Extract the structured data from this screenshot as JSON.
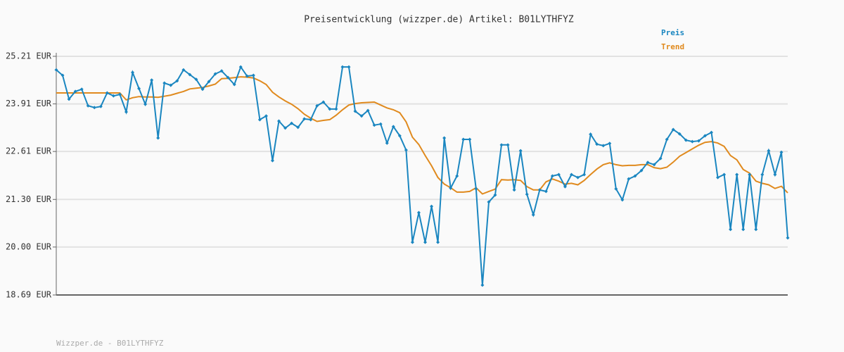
{
  "chart_data": {
    "type": "line",
    "title": "Preisentwicklung (wizzper.de) Artikel: B01LYTHFYZ",
    "footer": "Wizzper.de - B01LYTHFYZ",
    "ylim": [
      18.69,
      25.21
    ],
    "yticks": [
      {
        "value": 18.69,
        "label": "18.69 EUR"
      },
      {
        "value": 20.0,
        "label": "20.00 EUR"
      },
      {
        "value": 21.3,
        "label": "21.30 EUR"
      },
      {
        "value": 22.61,
        "label": "22.61 EUR"
      },
      {
        "value": 23.91,
        "label": "23.91 EUR"
      },
      {
        "value": 25.21,
        "label": "25.21 EUR"
      }
    ],
    "grid": true,
    "legend": "top-right",
    "series": [
      {
        "name": "Preis",
        "color": "#1a86c0",
        "markers": true,
        "values": [
          24.84,
          24.69,
          24.04,
          24.25,
          24.31,
          23.86,
          23.81,
          23.84,
          24.21,
          24.13,
          24.17,
          23.69,
          24.77,
          24.33,
          23.9,
          24.56,
          22.98,
          24.48,
          24.42,
          24.54,
          24.84,
          24.71,
          24.58,
          24.31,
          24.52,
          24.73,
          24.81,
          24.63,
          24.44,
          24.92,
          24.67,
          24.69,
          23.48,
          23.58,
          22.36,
          23.44,
          23.25,
          23.38,
          23.27,
          23.5,
          23.48,
          23.86,
          23.96,
          23.77,
          23.77,
          24.92,
          24.92,
          23.71,
          23.58,
          23.73,
          23.33,
          23.36,
          22.84,
          23.29,
          23.04,
          22.65,
          20.13,
          20.94,
          20.13,
          21.11,
          20.13,
          22.98,
          21.61,
          21.94,
          22.94,
          22.94,
          21.59,
          18.96,
          21.23,
          21.42,
          22.79,
          22.79,
          21.56,
          22.63,
          21.44,
          20.88,
          21.56,
          21.52,
          21.94,
          21.98,
          21.65,
          21.98,
          21.9,
          21.98,
          23.08,
          22.81,
          22.77,
          22.83,
          21.59,
          21.29,
          21.86,
          21.94,
          22.09,
          22.31,
          22.25,
          22.42,
          22.94,
          23.21,
          23.09,
          22.92,
          22.88,
          22.9,
          23.04,
          23.13,
          21.9,
          21.98,
          20.48,
          21.98,
          20.48,
          21.98,
          20.48,
          21.98,
          22.63,
          21.98,
          22.59,
          20.25
        ]
      },
      {
        "name": "Trend",
        "color": "#e08a1e",
        "markers": false,
        "values": [
          24.21,
          24.21,
          24.21,
          24.21,
          24.21,
          24.21,
          24.21,
          24.21,
          24.21,
          24.21,
          24.21,
          24.02,
          24.08,
          24.11,
          24.1,
          24.1,
          24.09,
          24.12,
          24.15,
          24.2,
          24.25,
          24.32,
          24.34,
          24.36,
          24.4,
          24.45,
          24.6,
          24.61,
          24.63,
          24.65,
          24.64,
          24.62,
          24.54,
          24.44,
          24.23,
          24.1,
          23.99,
          23.9,
          23.78,
          23.63,
          23.52,
          23.43,
          23.46,
          23.48,
          23.6,
          23.75,
          23.88,
          23.92,
          23.94,
          23.95,
          23.96,
          23.88,
          23.8,
          23.75,
          23.67,
          23.42,
          23.0,
          22.8,
          22.5,
          22.22,
          21.9,
          21.72,
          21.62,
          21.5,
          21.5,
          21.52,
          21.62,
          21.45,
          21.52,
          21.58,
          21.84,
          21.83,
          21.84,
          21.82,
          21.65,
          21.56,
          21.56,
          21.78,
          21.86,
          21.8,
          21.72,
          21.74,
          21.7,
          21.82,
          21.98,
          22.13,
          22.25,
          22.3,
          22.25,
          22.22,
          22.23,
          22.23,
          22.25,
          22.25,
          22.17,
          22.14,
          22.18,
          22.32,
          22.48,
          22.58,
          22.68,
          22.78,
          22.86,
          22.88,
          22.84,
          22.75,
          22.5,
          22.38,
          22.12,
          22.02,
          21.8,
          21.74,
          21.7,
          21.6,
          21.66,
          21.48
        ]
      }
    ]
  }
}
